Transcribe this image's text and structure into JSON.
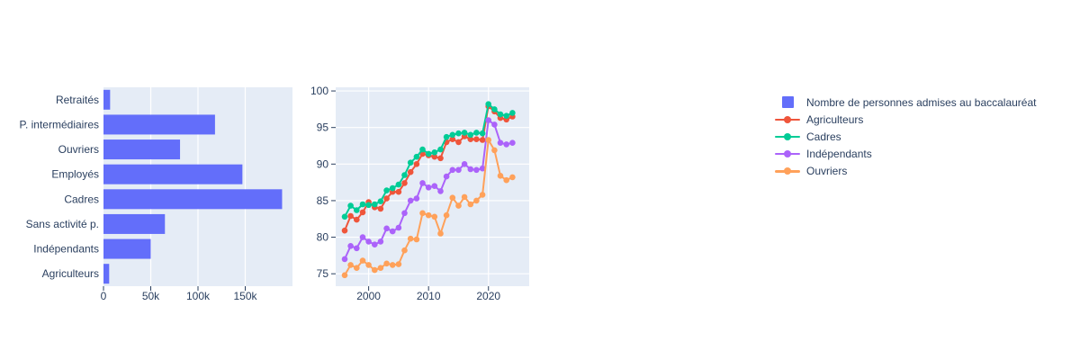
{
  "colors": {
    "plot_bg": "#E5ECF6",
    "grid": "#FFFFFF",
    "text": "#2A3F5F",
    "bar": "#636EFA"
  },
  "legend": {
    "items": [
      {
        "label": "Nombre de personnes admises au baccalauréat",
        "type": "square",
        "color": "#636EFA"
      },
      {
        "label": "Agriculteurs",
        "type": "line",
        "color": "#EF553B"
      },
      {
        "label": "Cadres",
        "type": "line",
        "color": "#00CC96"
      },
      {
        "label": "Indépendants",
        "type": "line",
        "color": "#AB63FA"
      },
      {
        "label": "Ouvriers",
        "type": "line",
        "color": "#FFA15A"
      }
    ]
  },
  "chart_data": [
    {
      "type": "bar",
      "orientation": "horizontal",
      "name": "Nombre de personnes admises au baccalauréat",
      "color": "#636EFA",
      "categories": [
        "Retraités",
        "P. intermédiaires",
        "Ouvriers",
        "Employés",
        "Cadres",
        "Sans activité p.",
        "Indépendants",
        "Agriculteurs"
      ],
      "values": [
        7000,
        118000,
        81000,
        147000,
        189000,
        65000,
        50000,
        6000
      ],
      "xticks": [
        "0",
        "50k",
        "100k",
        "150k"
      ],
      "xtick_values": [
        0,
        50000,
        100000,
        150000
      ],
      "xlim": [
        0,
        200000
      ],
      "grid": true,
      "xlabel": "",
      "ylabel": ""
    },
    {
      "type": "line",
      "title": "",
      "xlabel": "",
      "ylabel": "",
      "years": [
        1996,
        1997,
        1998,
        1999,
        2000,
        2001,
        2002,
        2003,
        2004,
        2005,
        2006,
        2007,
        2008,
        2009,
        2010,
        2011,
        2012,
        2013,
        2014,
        2015,
        2016,
        2017,
        2018,
        2019,
        2020,
        2021,
        2022,
        2023,
        2024
      ],
      "series": [
        {
          "name": "Agriculteurs",
          "color": "#EF553B",
          "values": [
            80.9,
            82.9,
            82.4,
            83.4,
            84.8,
            84.1,
            83.9,
            85.3,
            86.2,
            86.2,
            87.4,
            88.9,
            90.0,
            91.4,
            91.2,
            91.0,
            90.8,
            93.0,
            93.4,
            93.0,
            93.8,
            93.4,
            93.4,
            93.3,
            97.9,
            97.2,
            96.3,
            96.1,
            96.5
          ]
        },
        {
          "name": "Cadres",
          "color": "#00CC96",
          "values": [
            82.8,
            84.3,
            83.7,
            84.5,
            84.4,
            84.5,
            84.9,
            86.4,
            86.7,
            87.2,
            88.5,
            90.2,
            91.0,
            92.0,
            91.4,
            91.6,
            92.0,
            93.7,
            94.0,
            94.2,
            94.3,
            94.0,
            94.3,
            94.2,
            98.2,
            97.5,
            96.8,
            96.6,
            97.0
          ]
        },
        {
          "name": "Indépendants",
          "color": "#AB63FA",
          "values": [
            77.0,
            78.8,
            78.5,
            80.0,
            79.4,
            79.0,
            79.4,
            81.2,
            80.8,
            81.3,
            83.3,
            85.0,
            85.3,
            87.4,
            86.8,
            87.0,
            86.3,
            88.3,
            89.2,
            89.2,
            90.0,
            89.3,
            89.2,
            89.4,
            96.0,
            95.4,
            92.9,
            92.7,
            92.9
          ]
        },
        {
          "name": "Ouvriers",
          "color": "#FFA15A",
          "values": [
            74.8,
            76.2,
            75.8,
            76.8,
            76.2,
            75.5,
            75.8,
            76.4,
            76.2,
            76.3,
            78.2,
            79.8,
            79.7,
            83.3,
            83.0,
            82.8,
            80.5,
            83.0,
            85.4,
            84.3,
            85.5,
            84.5,
            85.0,
            85.8,
            93.3,
            91.9,
            88.4,
            87.8,
            88.2
          ]
        }
      ],
      "xticks": [
        "2000",
        "2010",
        "2020"
      ],
      "xtick_values": [
        2000,
        2010,
        2020
      ],
      "yticks": [
        "75",
        "80",
        "85",
        "90",
        "95",
        "100"
      ],
      "ytick_values": [
        75,
        80,
        85,
        90,
        95,
        100
      ],
      "xlim": [
        1994.5,
        2026.8
      ],
      "ylim": [
        73.3,
        100.5
      ],
      "grid": true,
      "legend_position": "right"
    }
  ]
}
